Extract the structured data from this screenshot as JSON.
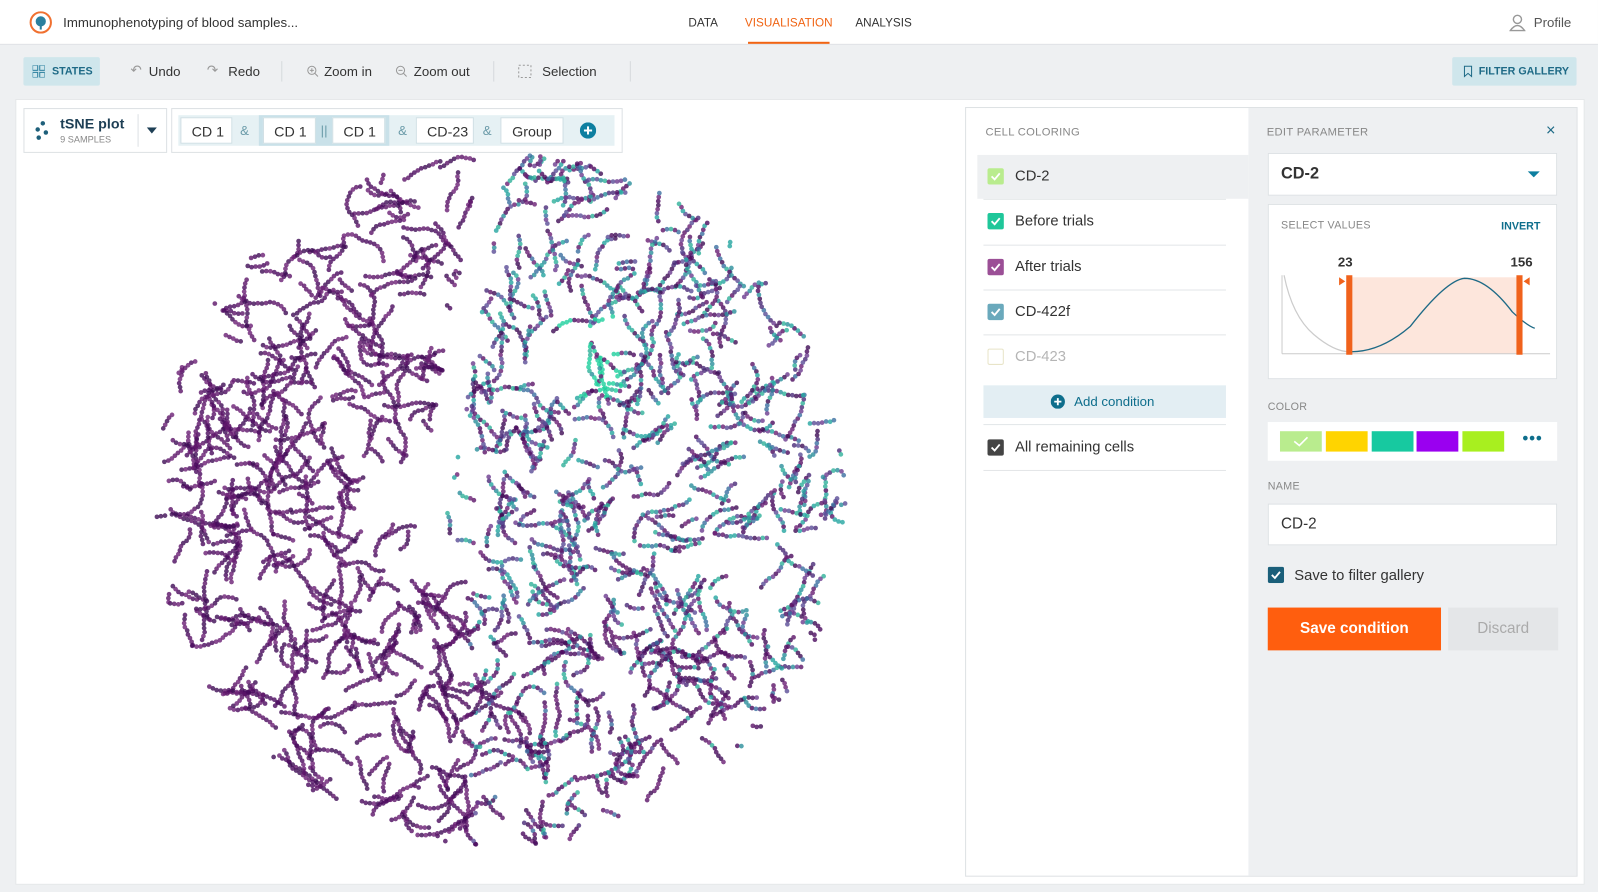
{
  "header": {
    "title": "Immunophenotyping of blood samples...",
    "nav": [
      "DATA",
      "VISUALISATION",
      "ANALYSIS"
    ],
    "profile": "Profile"
  },
  "toolbar": {
    "states": "STATES",
    "undo": "Undo",
    "redo": "Redo",
    "zoom_in": "Zoom in",
    "zoom_out": "Zoom out",
    "selection": "Selection",
    "filter_gallery": "FILTER GALLERY"
  },
  "plot": {
    "title": "tSNE plot",
    "subtitle": "9 SAMPLES",
    "filter": [
      "CD 1",
      "&",
      "CD 1",
      "||",
      "CD 1",
      "&",
      "CD-23",
      "&",
      "Group"
    ]
  },
  "cell_coloring": {
    "title": "CELL COLORING",
    "conditions": [
      {
        "label": "CD-2",
        "checked": true,
        "color": "#b9ec8e"
      },
      {
        "label": "Before trials",
        "checked": true,
        "color": "#1fc79a"
      },
      {
        "label": "After trials",
        "checked": true,
        "color": "#9b4f96"
      },
      {
        "label": "CD-422f",
        "checked": true,
        "color": "#6aa9bc"
      },
      {
        "label": "CD-423",
        "checked": false,
        "color": "#e8e4c8"
      }
    ],
    "add": "Add condition",
    "remaining": {
      "label": "All remaining cells",
      "checked": true,
      "color": "#444444"
    }
  },
  "edit": {
    "title": "EDIT PARAMETER",
    "parameter": "CD-2",
    "select_values": "SELECT VALUES",
    "invert": "INVERT",
    "low": 23,
    "high": 156,
    "color_label": "COLOR",
    "colors": [
      "#b9ec8e",
      "#ffd400",
      "#17c9a0",
      "#9a00f0",
      "#a8ef1f"
    ],
    "name_label": "NAME",
    "name": "CD-2",
    "save_to_gallery": "Save to filter gallery",
    "save": "Save condition",
    "discard": "Discard"
  }
}
